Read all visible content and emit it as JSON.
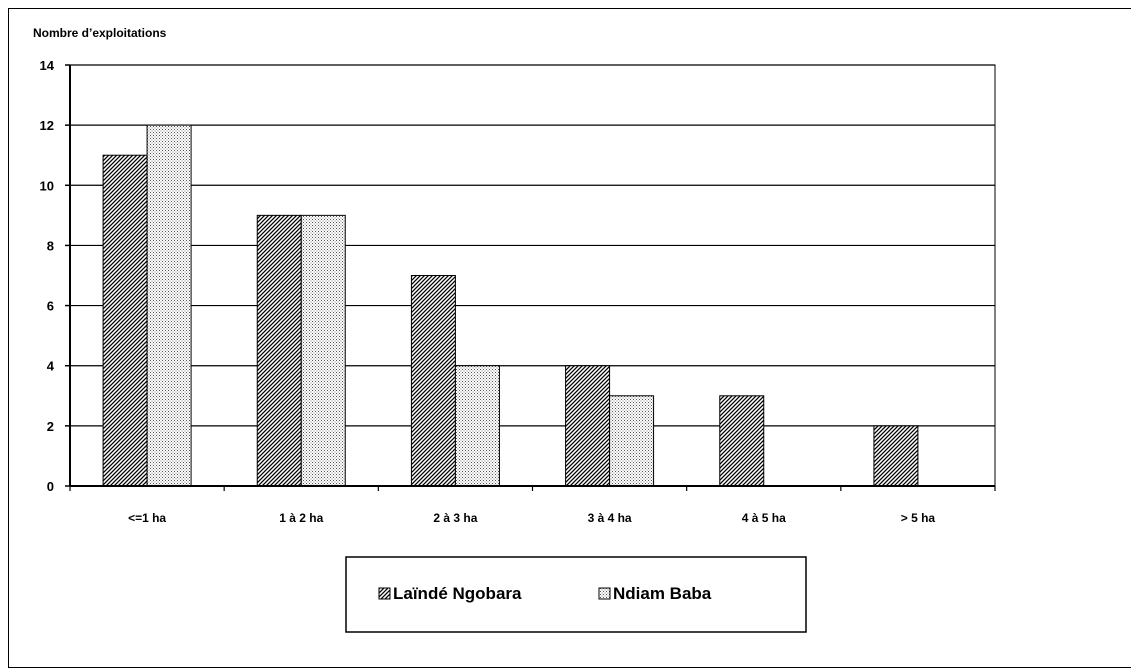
{
  "chart_data": {
    "type": "bar",
    "ylabel": "Nombre d’exploitations",
    "xlabel": "",
    "categories": [
      "<=1 ha",
      "1 à 2 ha",
      "2 à 3 ha",
      "3 à 4 ha",
      "4 à 5 ha",
      "> 5 ha"
    ],
    "series": [
      {
        "name": "Laïndé Ngobara",
        "values": [
          11,
          9,
          7,
          4,
          3,
          2
        ]
      },
      {
        "name": "Ndiam Baba",
        "values": [
          12,
          9,
          4,
          3,
          0,
          0
        ]
      }
    ],
    "ylim": [
      0,
      14
    ],
    "yticks": [
      0,
      2,
      4,
      6,
      8,
      10,
      12,
      14
    ],
    "grid": true,
    "legend_position": "bottom"
  }
}
